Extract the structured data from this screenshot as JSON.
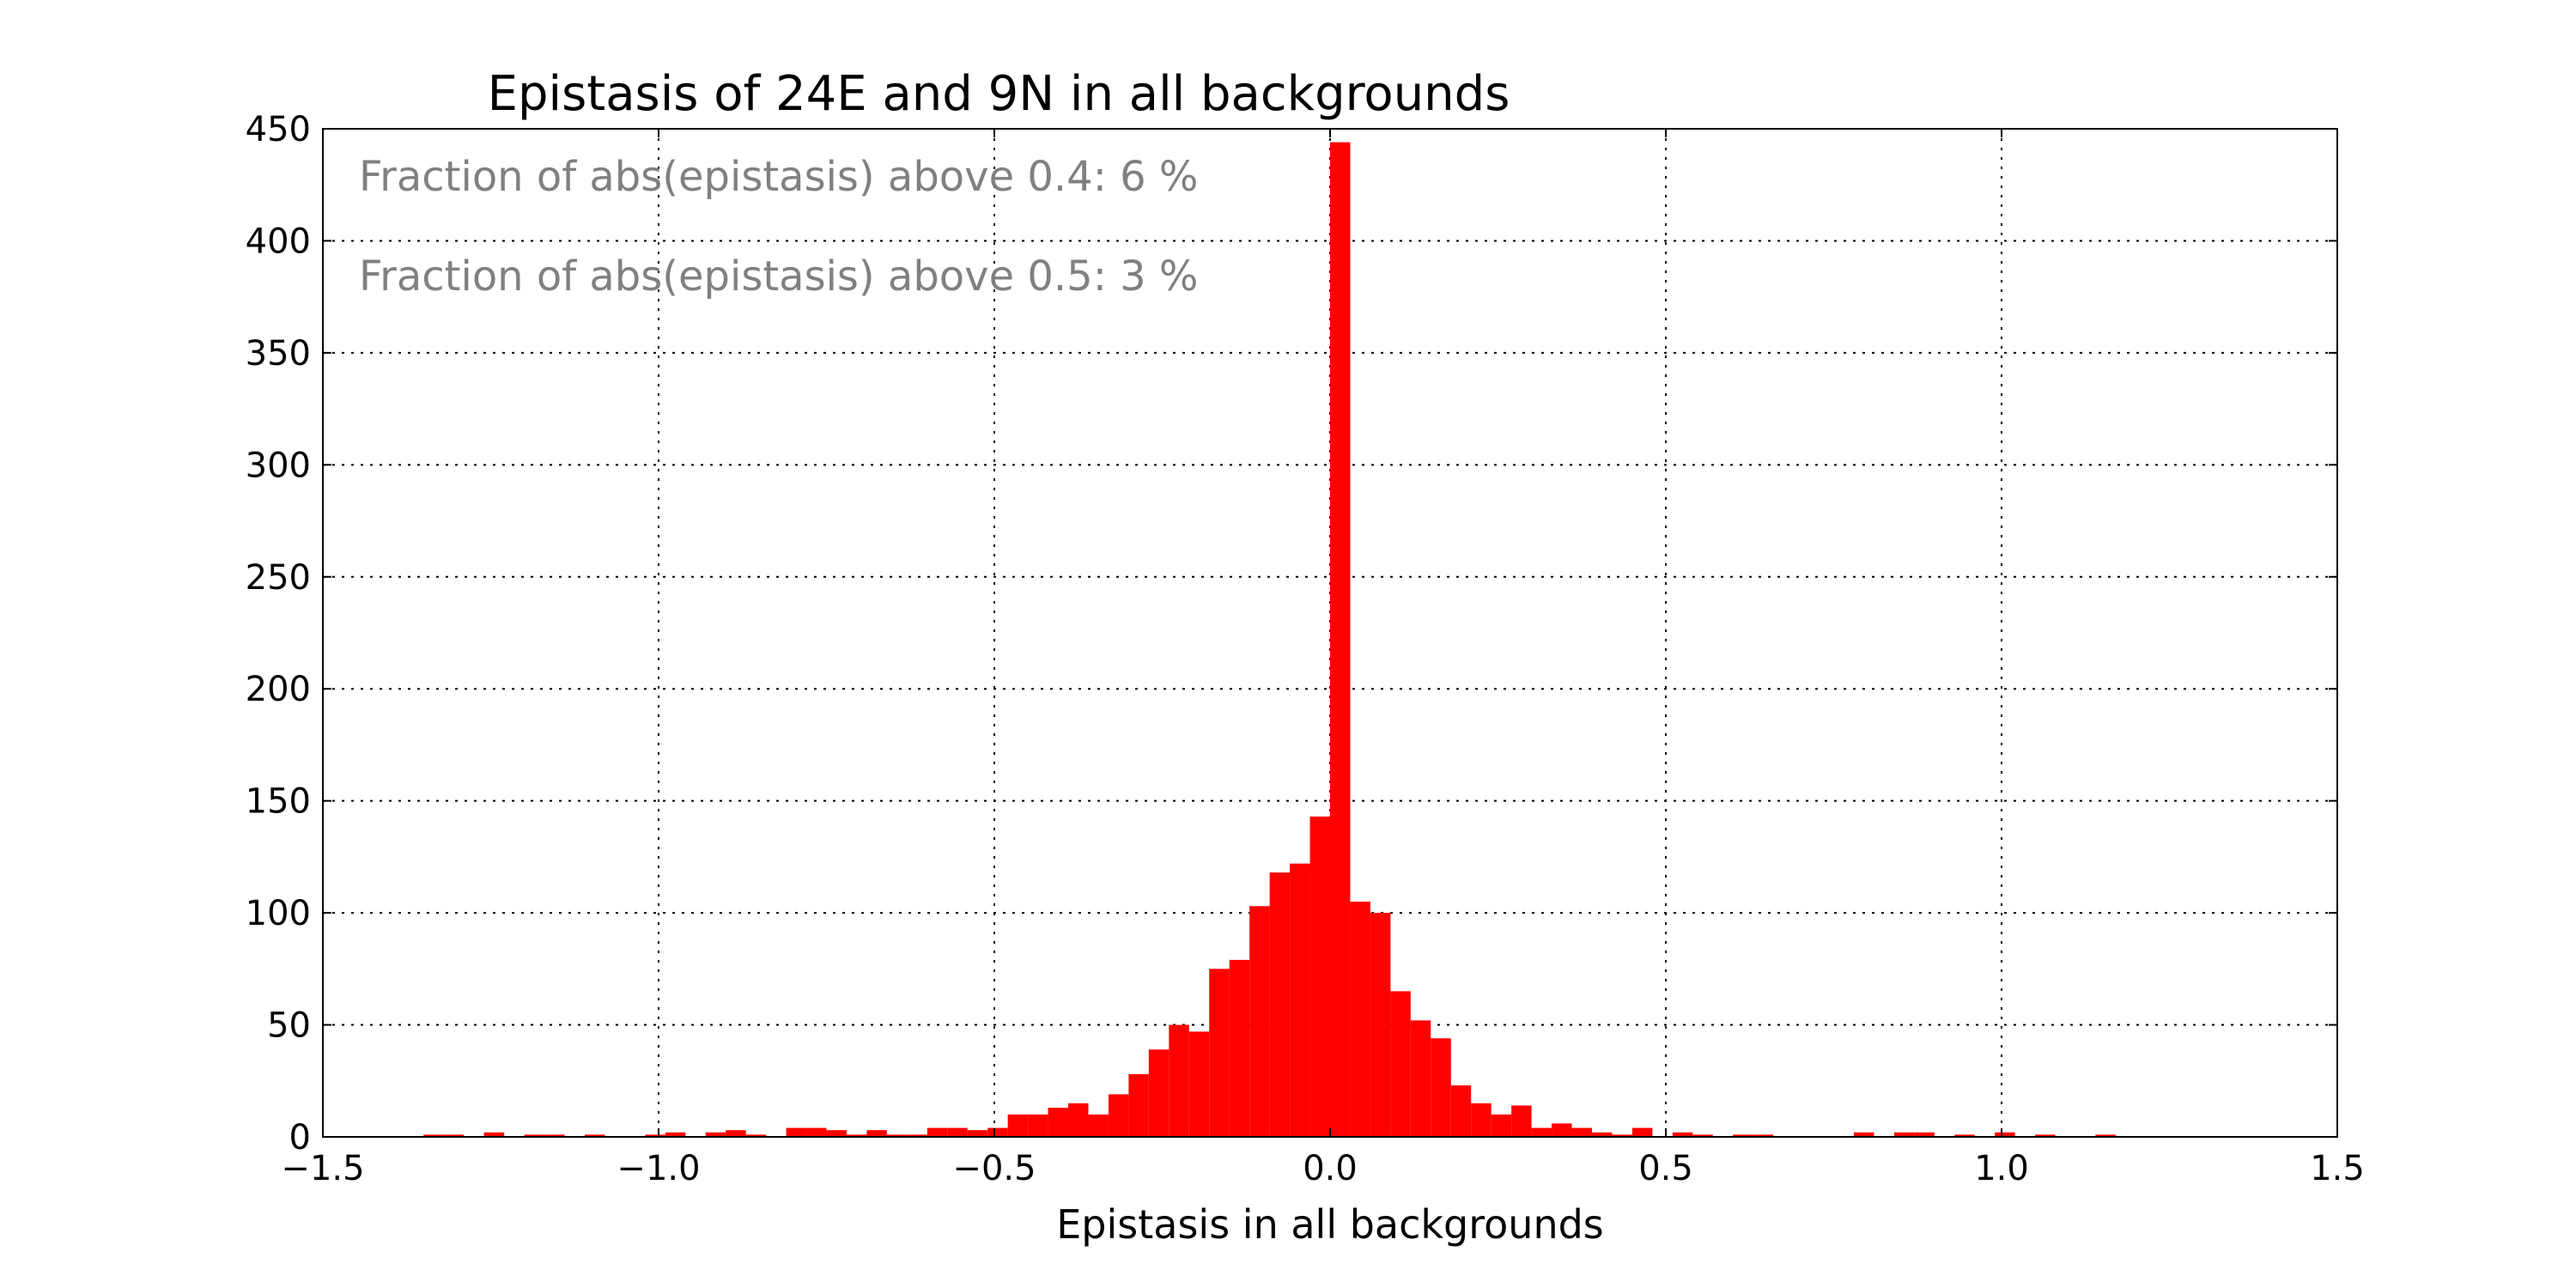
{
  "chart_data": {
    "type": "bar",
    "title": "Epistasis of 24E and 9N in all backgrounds",
    "xlabel": "Epistasis in all backgrounds",
    "ylabel": "",
    "xlim": [
      -1.5,
      1.5
    ],
    "ylim": [
      0,
      450
    ],
    "xticks": [
      -1.5,
      -1.0,
      -0.5,
      0.0,
      0.5,
      1.0,
      1.5
    ],
    "xtick_labels": [
      "−1.5",
      "−1.0",
      "−0.5",
      "0.0",
      "0.5",
      "1.0",
      "1.5"
    ],
    "yticks": [
      0,
      50,
      100,
      150,
      200,
      250,
      300,
      350,
      400,
      450
    ],
    "ytick_labels": [
      "0",
      "50",
      "100",
      "150",
      "200",
      "250",
      "300",
      "350",
      "400",
      "450"
    ],
    "grid": true,
    "bar_color": "#ff0000",
    "bin_width": 0.03,
    "bins": [
      {
        "x": -1.35,
        "count": 1
      },
      {
        "x": -1.32,
        "count": 1
      },
      {
        "x": -1.26,
        "count": 2
      },
      {
        "x": -1.2,
        "count": 1
      },
      {
        "x": -1.17,
        "count": 1
      },
      {
        "x": -1.11,
        "count": 1
      },
      {
        "x": -1.02,
        "count": 1
      },
      {
        "x": -0.99,
        "count": 2
      },
      {
        "x": -0.93,
        "count": 2
      },
      {
        "x": -0.9,
        "count": 3
      },
      {
        "x": -0.87,
        "count": 1
      },
      {
        "x": -0.81,
        "count": 4
      },
      {
        "x": -0.78,
        "count": 4
      },
      {
        "x": -0.75,
        "count": 3
      },
      {
        "x": -0.72,
        "count": 1
      },
      {
        "x": -0.69,
        "count": 3
      },
      {
        "x": -0.66,
        "count": 1
      },
      {
        "x": -0.63,
        "count": 1
      },
      {
        "x": -0.6,
        "count": 4
      },
      {
        "x": -0.57,
        "count": 4
      },
      {
        "x": -0.54,
        "count": 3
      },
      {
        "x": -0.51,
        "count": 4
      },
      {
        "x": -0.48,
        "count": 10
      },
      {
        "x": -0.45,
        "count": 10
      },
      {
        "x": -0.42,
        "count": 13
      },
      {
        "x": -0.39,
        "count": 15
      },
      {
        "x": -0.36,
        "count": 10
      },
      {
        "x": -0.33,
        "count": 19
      },
      {
        "x": -0.3,
        "count": 28
      },
      {
        "x": -0.27,
        "count": 39
      },
      {
        "x": -0.24,
        "count": 50
      },
      {
        "x": -0.21,
        "count": 47
      },
      {
        "x": -0.18,
        "count": 75
      },
      {
        "x": -0.15,
        "count": 79
      },
      {
        "x": -0.12,
        "count": 103
      },
      {
        "x": -0.09,
        "count": 118
      },
      {
        "x": -0.06,
        "count": 122
      },
      {
        "x": -0.03,
        "count": 143
      },
      {
        "x": 0.0,
        "count": 444
      },
      {
        "x": 0.03,
        "count": 105
      },
      {
        "x": 0.06,
        "count": 100
      },
      {
        "x": 0.09,
        "count": 65
      },
      {
        "x": 0.12,
        "count": 52
      },
      {
        "x": 0.15,
        "count": 44
      },
      {
        "x": 0.18,
        "count": 23
      },
      {
        "x": 0.21,
        "count": 15
      },
      {
        "x": 0.24,
        "count": 10
      },
      {
        "x": 0.27,
        "count": 14
      },
      {
        "x": 0.3,
        "count": 4
      },
      {
        "x": 0.33,
        "count": 6
      },
      {
        "x": 0.36,
        "count": 4
      },
      {
        "x": 0.39,
        "count": 2
      },
      {
        "x": 0.42,
        "count": 1
      },
      {
        "x": 0.45,
        "count": 4
      },
      {
        "x": 0.51,
        "count": 2
      },
      {
        "x": 0.54,
        "count": 1
      },
      {
        "x": 0.6,
        "count": 1
      },
      {
        "x": 0.63,
        "count": 1
      },
      {
        "x": 0.78,
        "count": 2
      },
      {
        "x": 0.84,
        "count": 2
      },
      {
        "x": 0.87,
        "count": 2
      },
      {
        "x": 0.93,
        "count": 1
      },
      {
        "x": 0.99,
        "count": 2
      },
      {
        "x": 1.05,
        "count": 1
      },
      {
        "x": 1.14,
        "count": 1
      }
    ],
    "annotations": [
      {
        "text": "Fraction of abs(epistasis) above 0.4: 6 %",
        "color": "#808080"
      },
      {
        "text": "Fraction of abs(epistasis) above 0.5: 3 %",
        "color": "#808080"
      }
    ]
  }
}
